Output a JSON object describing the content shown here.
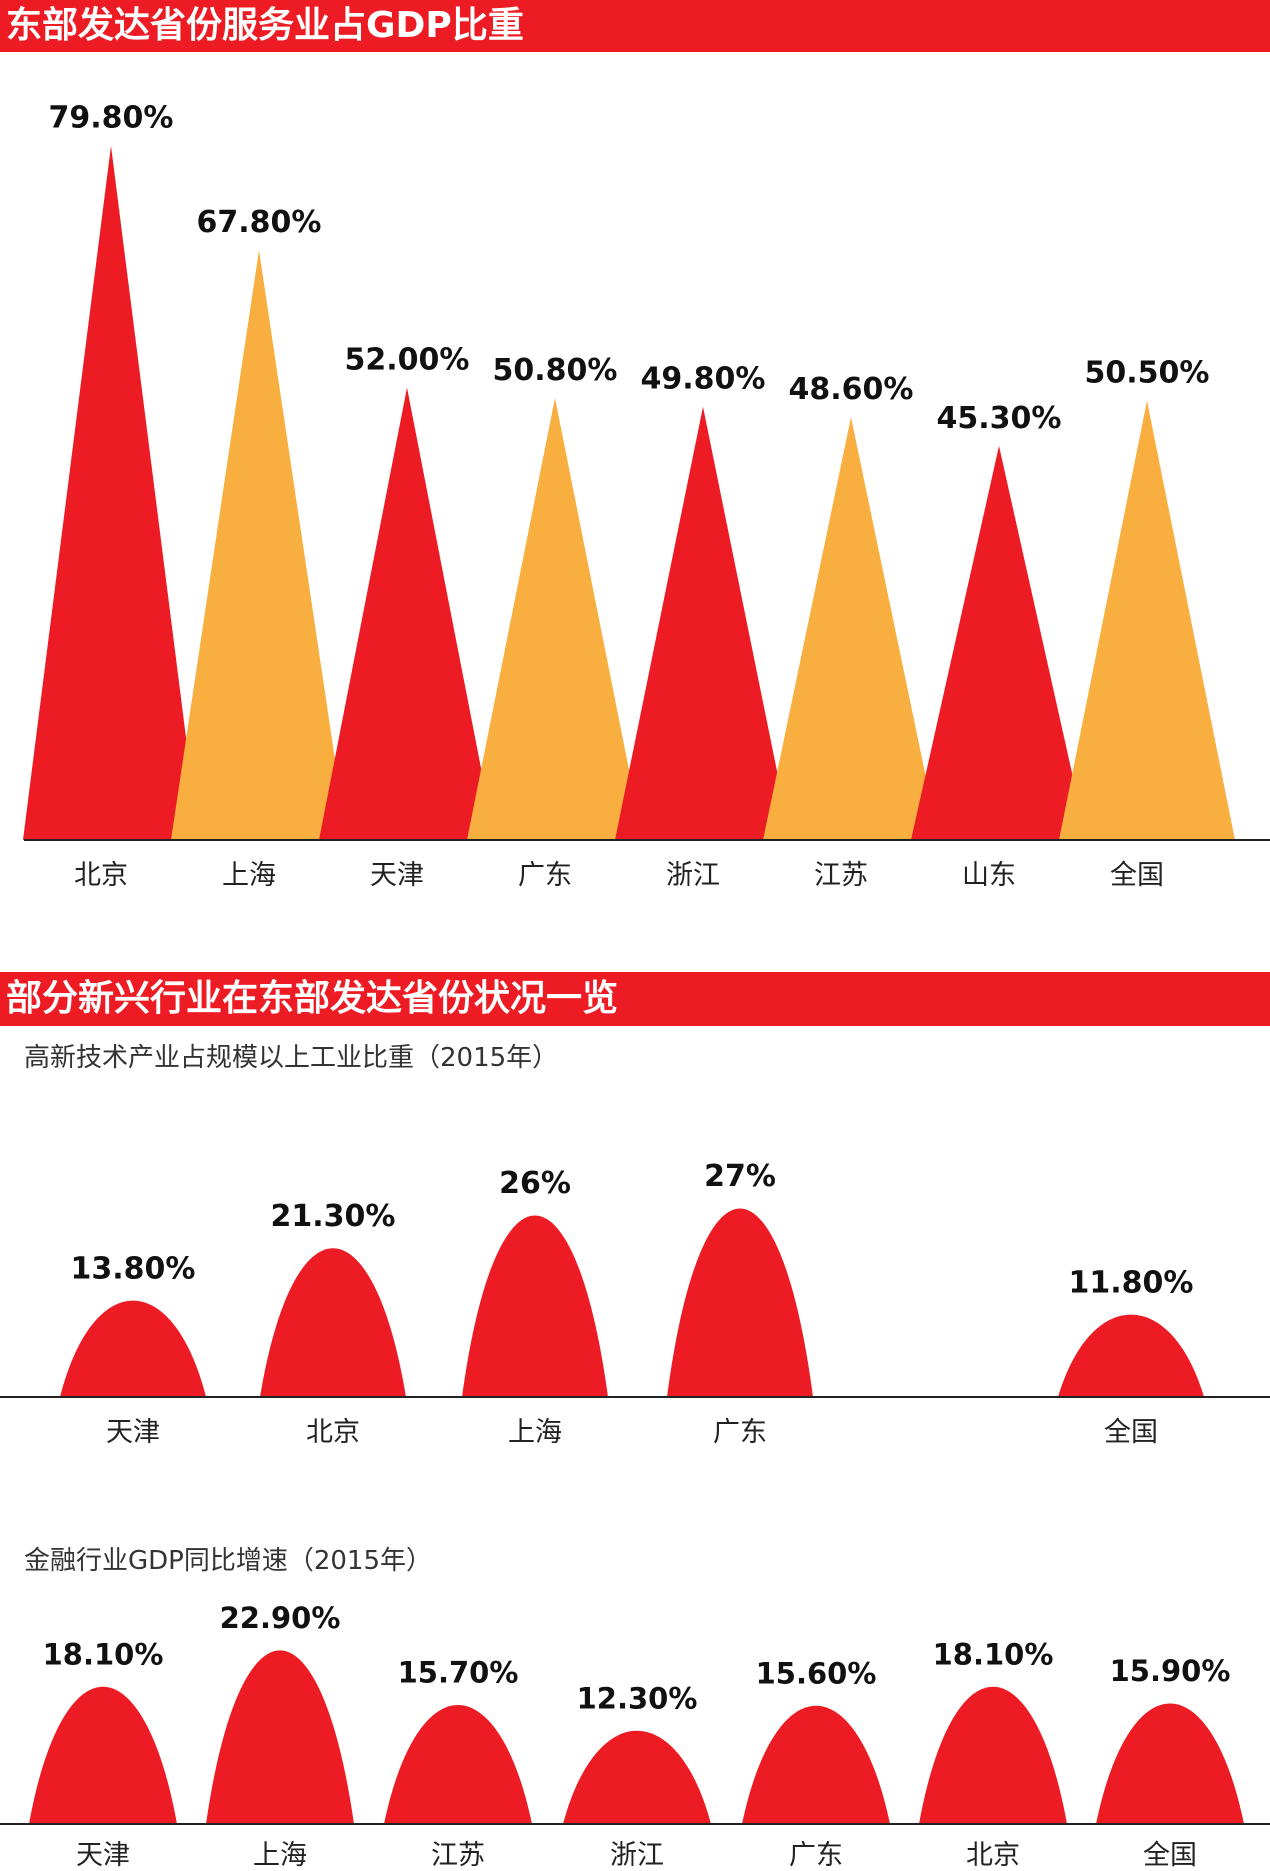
{
  "header": {
    "title1": "东部发达省份服务业占GDP比重",
    "title2": "部分新兴行业在东部发达省份状况一览",
    "sub1": "高新技术产业占规模以上工业比重（2015年）",
    "sub2": "金融行业GDP同比增速（2015年）"
  },
  "colors": {
    "red": "#ed1c24",
    "orange": "#f9ae40",
    "axis": "#222222"
  },
  "chart_data": [
    {
      "type": "bar",
      "shape": "triangle",
      "title": "东部发达省份服务业占GDP比重",
      "categories": [
        "北京",
        "上海",
        "天津",
        "广东",
        "浙江",
        "江苏",
        "山东",
        "全国"
      ],
      "values": [
        79.8,
        67.8,
        52.0,
        50.8,
        49.8,
        48.6,
        45.3,
        50.5
      ],
      "labels": [
        "79.80%",
        "67.80%",
        "52.00%",
        "50.80%",
        "49.80%",
        "48.60%",
        "45.30%",
        "50.50%"
      ],
      "fill": [
        "red",
        "orange",
        "red",
        "orange",
        "red",
        "orange",
        "red",
        "orange"
      ]
    },
    {
      "type": "bar",
      "shape": "arch",
      "title": "高新技术产业占规模以上工业比重（2015年）",
      "categories": [
        "天津",
        "北京",
        "上海",
        "广东",
        "全国"
      ],
      "values": [
        13.8,
        21.3,
        26,
        27,
        11.8
      ],
      "labels": [
        "13.80%",
        "21.30%",
        "26%",
        "27%",
        "11.80%"
      ]
    },
    {
      "type": "bar",
      "shape": "arch",
      "title": "金融行业GDP同比增速（2015年）",
      "categories": [
        "天津",
        "上海",
        "江苏",
        "浙江",
        "广东",
        "北京",
        "全国"
      ],
      "values": [
        18.1,
        22.9,
        15.7,
        12.3,
        15.6,
        18.1,
        15.9
      ],
      "labels": [
        "18.10%",
        "22.90%",
        "15.70%",
        "12.30%",
        "15.60%",
        "18.10%",
        "15.90%"
      ]
    }
  ]
}
